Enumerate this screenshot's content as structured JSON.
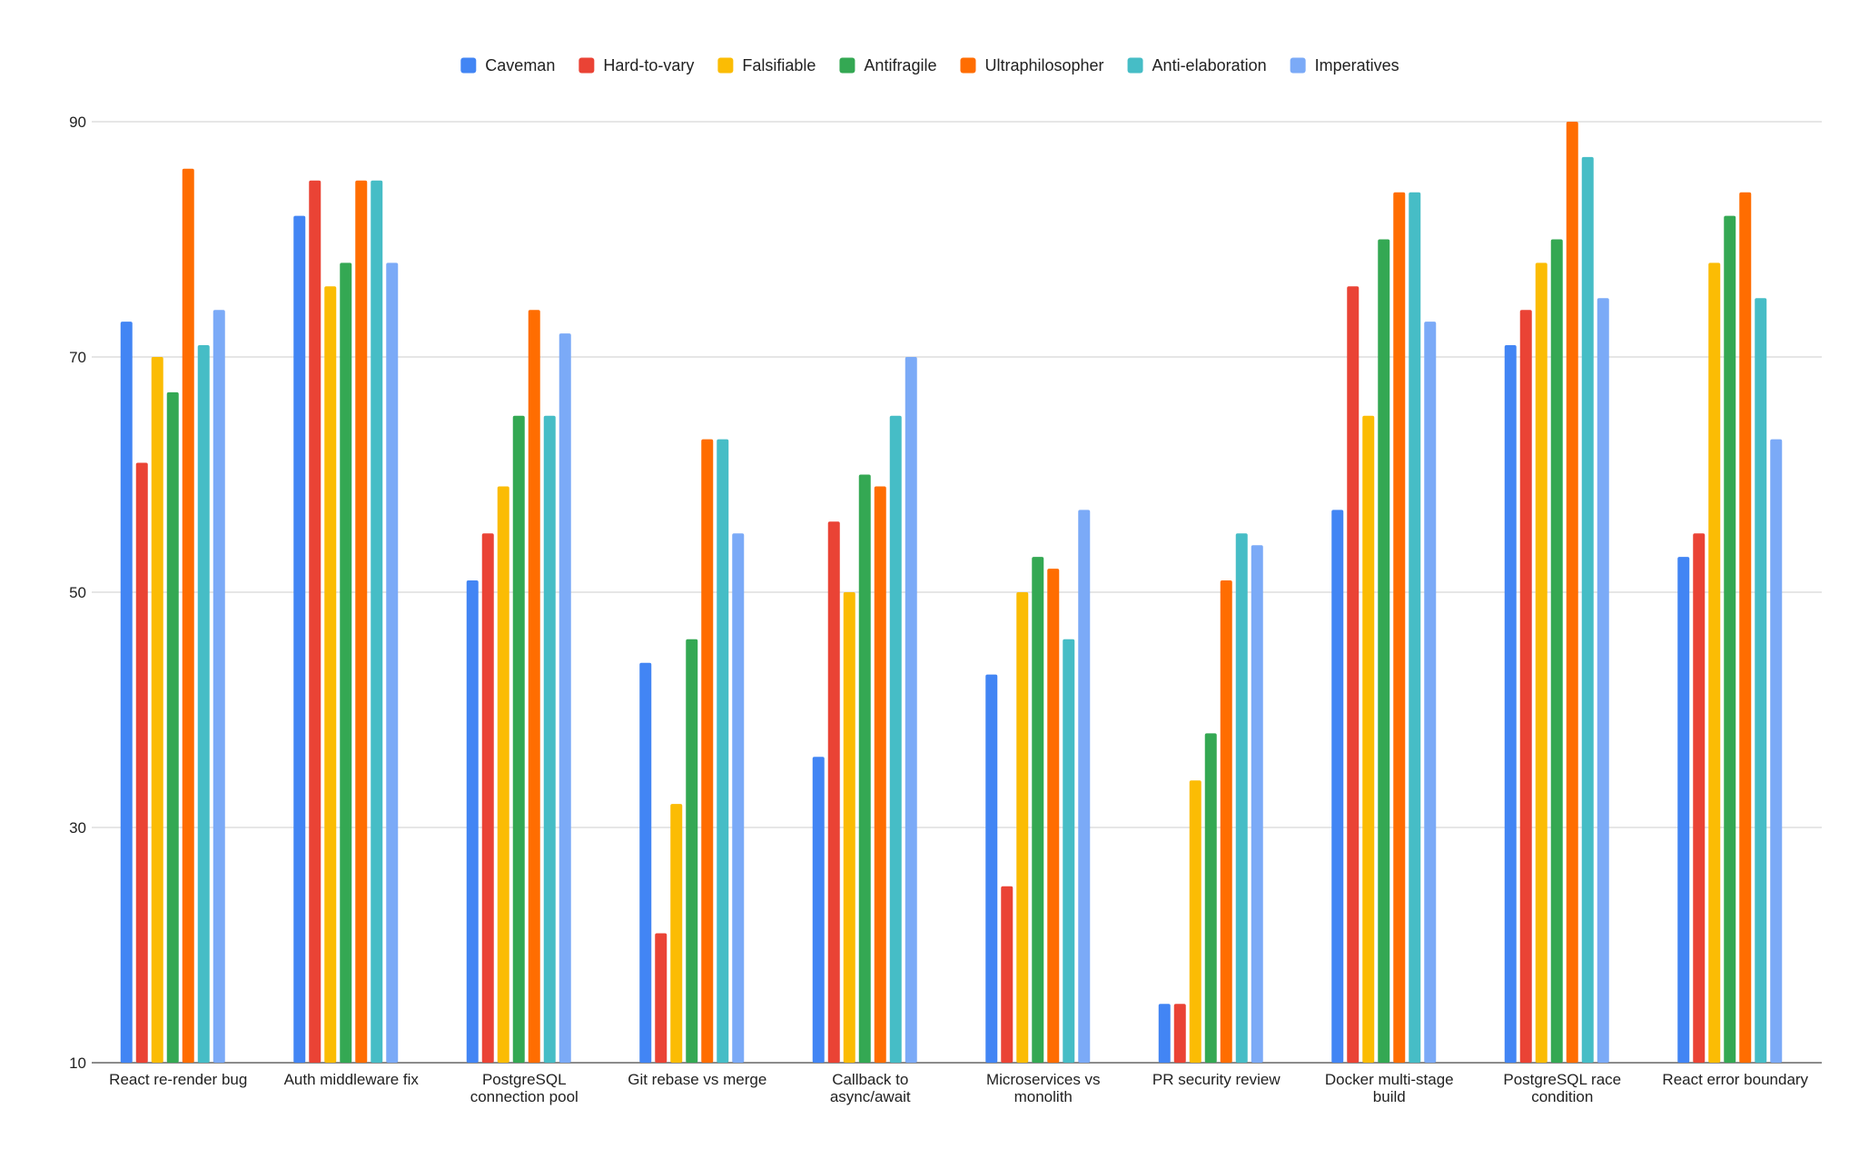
{
  "chart_data": {
    "type": "bar",
    "title": "",
    "xlabel": "",
    "ylabel": "",
    "ylim": [
      10,
      90
    ],
    "yticks": [
      10,
      30,
      50,
      70,
      90
    ],
    "grid": true,
    "legend_position": "top-center",
    "categories": [
      [
        "React re-render bug"
      ],
      [
        "Auth middleware fix"
      ],
      [
        "PostgreSQL",
        "connection pool"
      ],
      [
        "Git rebase vs merge"
      ],
      [
        "Callback to",
        "async/await"
      ],
      [
        "Microservices vs",
        "monolith"
      ],
      [
        "PR security review"
      ],
      [
        "Docker multi-stage",
        "build"
      ],
      [
        "PostgreSQL race",
        "condition"
      ],
      [
        "React error boundary"
      ]
    ],
    "series": [
      {
        "name": "Caveman",
        "color": "#4285F4",
        "values": [
          73,
          82,
          51,
          44,
          36,
          43,
          15,
          57,
          71,
          53
        ]
      },
      {
        "name": "Hard-to-vary",
        "color": "#EA4335",
        "values": [
          61,
          85,
          55,
          21,
          56,
          25,
          15,
          76,
          74,
          55
        ]
      },
      {
        "name": "Falsifiable",
        "color": "#FBBC04",
        "values": [
          70,
          76,
          59,
          32,
          50,
          50,
          34,
          65,
          78,
          78
        ]
      },
      {
        "name": "Antifragile",
        "color": "#34A853",
        "values": [
          67,
          78,
          65,
          46,
          60,
          53,
          38,
          80,
          80,
          82
        ]
      },
      {
        "name": "Ultraphilosopher",
        "color": "#FF6D01",
        "values": [
          86,
          85,
          74,
          63,
          59,
          52,
          51,
          84,
          90,
          84
        ]
      },
      {
        "name": "Anti-elaboration",
        "color": "#46BDC6",
        "values": [
          71,
          85,
          65,
          63,
          65,
          46,
          55,
          84,
          87,
          75
        ]
      },
      {
        "name": "Imperatives",
        "color": "#7BAAF7",
        "values": [
          74,
          78,
          72,
          55,
          70,
          57,
          54,
          73,
          75,
          63
        ]
      }
    ]
  }
}
